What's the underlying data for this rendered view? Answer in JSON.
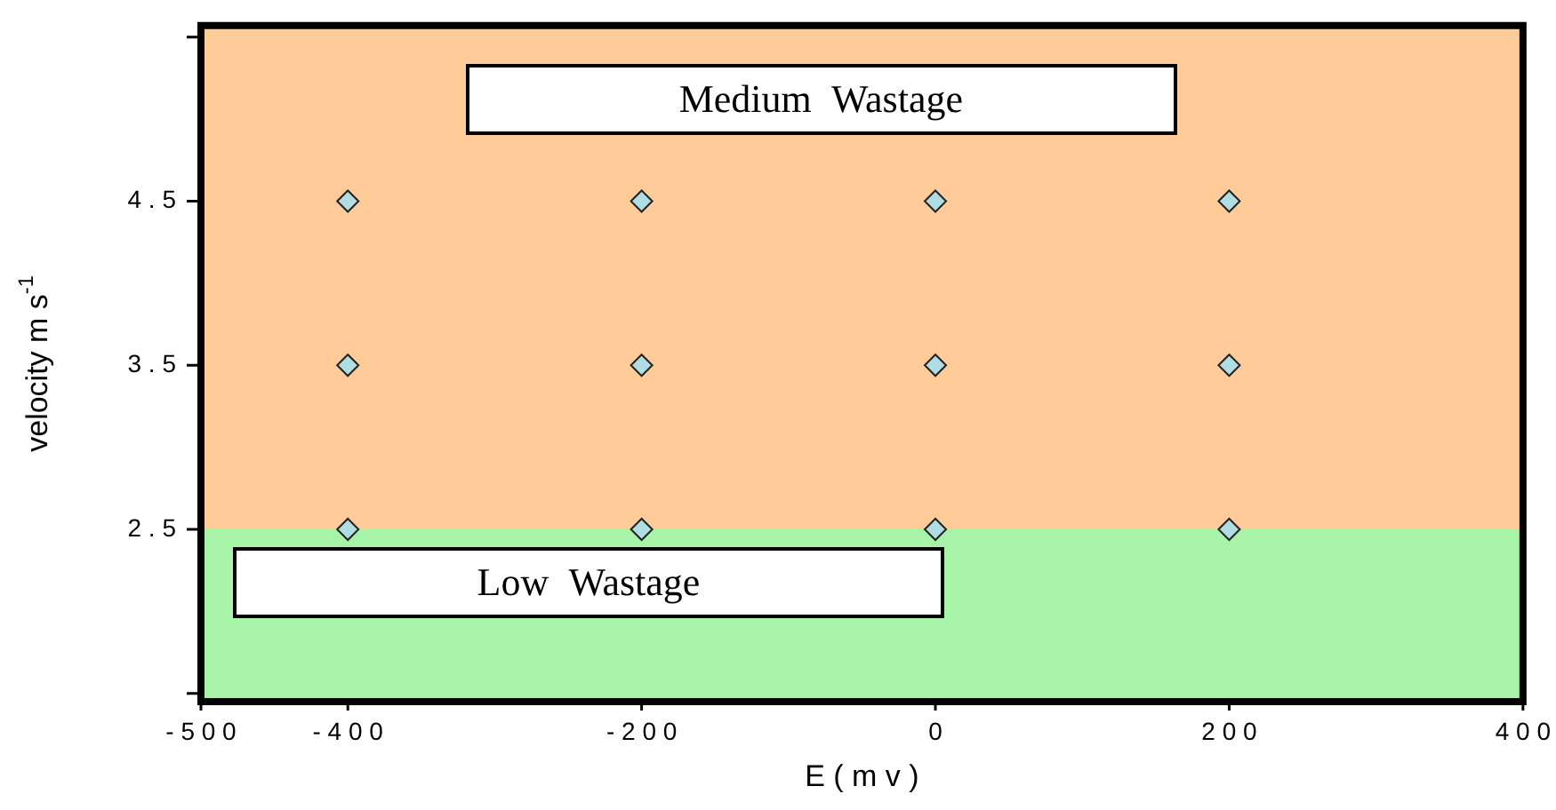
{
  "chart_data": {
    "type": "scatter",
    "xlabel": "E ( m v )",
    "ylabel": "velocity m s$^{-1}$",
    "series": [
      {
        "color": "#b0dde4",
        "x": [
          -400,
          -200,
          0,
          200,
          -400,
          -200,
          0,
          200,
          -400,
          -200,
          0,
          200
        ],
        "values": [
          4.5,
          4.5,
          4.5,
          4.5,
          3.5,
          3.5,
          3.5,
          3.5,
          2.5,
          2.5,
          2.5,
          2.5
        ]
      }
    ],
    "xlim": [
      -500,
      400
    ],
    "xticks": [
      -500,
      -400,
      -200,
      0,
      200,
      400
    ],
    "ylim": [
      1.45,
      5.57
    ],
    "yticks": [
      {
        "value": 1.5,
        "label": null
      },
      2.5,
      3.5,
      4.5,
      {
        "value": 5.5,
        "label": null
      }
    ],
    "bands": [
      {
        "axis": "y",
        "from": 2.5,
        "to": 5.57,
        "label": "Medium Wastage",
        "color": "#ff8000"
      },
      {
        "axis": "y",
        "from": 1.45,
        "to": 2.5,
        "label": "Low Wastage",
        "color": "#22e022"
      }
    ],
    "marker": "diamond",
    "grid": false,
    "legend": false
  }
}
